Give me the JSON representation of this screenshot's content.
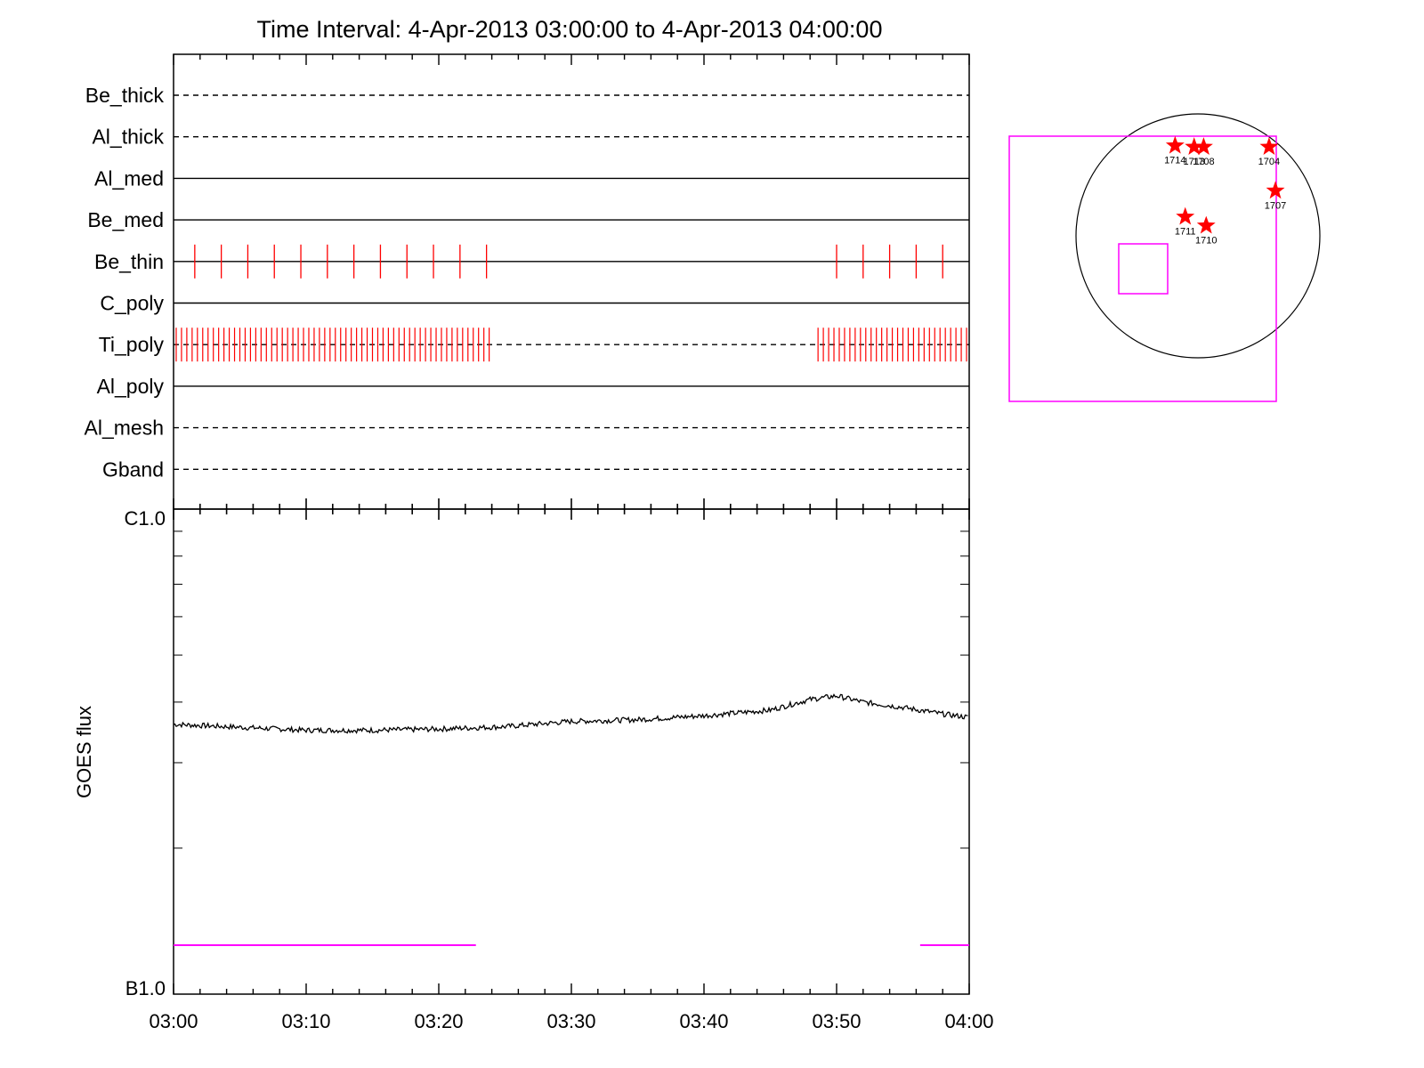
{
  "chart_data": [
    {
      "type": "line",
      "title": "Time Interval:  4-Apr-2013 03:00:00 to  4-Apr-2013 04:00:00",
      "xlabel": "",
      "ylabel": "",
      "x_range": [
        "03:00",
        "04:00"
      ],
      "filters": [
        {
          "name": "Be_thick",
          "style": "dashed"
        },
        {
          "name": "Al_thick",
          "style": "dashed"
        },
        {
          "name": "Al_med",
          "style": "solid"
        },
        {
          "name": "Be_med",
          "style": "solid"
        },
        {
          "name": "Be_thin",
          "style": "solid",
          "exposures_min": [
            1.6,
            3.6,
            5.6,
            7.6,
            9.6,
            11.6,
            13.6,
            15.6,
            17.6,
            19.6,
            21.6,
            23.6,
            50.0,
            52.0,
            54.0,
            56.0,
            58.0
          ]
        },
        {
          "name": "C_poly",
          "style": "solid"
        },
        {
          "name": "Ti_poly",
          "style": "dashed",
          "exposure_runs_min": [
            {
              "start": 0.2,
              "end": 23.8,
              "step": 0.4
            },
            {
              "start": 48.6,
              "end": 59.8,
              "step": 0.4
            }
          ]
        },
        {
          "name": "Al_poly",
          "style": "solid"
        },
        {
          "name": "Al_mesh",
          "style": "dashed"
        },
        {
          "name": "Gband",
          "style": "dashed"
        }
      ],
      "colors": {
        "exposure_mark": "#ff0000",
        "axis": "#000000"
      }
    },
    {
      "type": "line",
      "title": "",
      "xlabel": "",
      "ylabel": "GOES flux",
      "y_scale": "log",
      "ylim": [
        "B1.0",
        "C1.0"
      ],
      "ytick_labels": [
        "C1.0",
        "B1.0"
      ],
      "x_tick_labels": [
        "03:00",
        "03:10",
        "03:20",
        "03:30",
        "03:40",
        "03:50",
        "04:00"
      ],
      "goes_curve": {
        "x_min": [
          0,
          5,
          10,
          15,
          20,
          25,
          30,
          35,
          40,
          45,
          48,
          50,
          52,
          55,
          58,
          60
        ],
        "flux_W_m2": [
          3.6e-07,
          3.55e-07,
          3.5e-07,
          3.5e-07,
          3.52e-07,
          3.56e-07,
          3.65e-07,
          3.68e-07,
          3.75e-07,
          3.85e-07,
          4.05e-07,
          4.12e-07,
          4e-07,
          3.9e-07,
          3.78e-07,
          3.72e-07
        ],
        "color": "#000000"
      },
      "coverage_segments_min": [
        [
          0,
          22.8
        ],
        [
          56.3,
          60
        ]
      ],
      "coverage_color": "#ff00ff"
    },
    {
      "type": "scatter",
      "title": "",
      "xlabel": "",
      "ylabel": "",
      "points": [
        {
          "label": "1714",
          "x": -180,
          "y": 710
        },
        {
          "label": "1713",
          "x": -30,
          "y": 700
        },
        {
          "label": "1708",
          "x": 45,
          "y": 700
        },
        {
          "label": "1704",
          "x": 560,
          "y": 700
        },
        {
          "label": "1711",
          "x": -100,
          "y": 150
        },
        {
          "label": "1710",
          "x": 65,
          "y": 80
        },
        {
          "label": "1707",
          "x": 610,
          "y": 355
        }
      ],
      "colors": {
        "marker": "#ff0000",
        "fov": "#ff00ff",
        "limb": "#000000"
      }
    }
  ]
}
